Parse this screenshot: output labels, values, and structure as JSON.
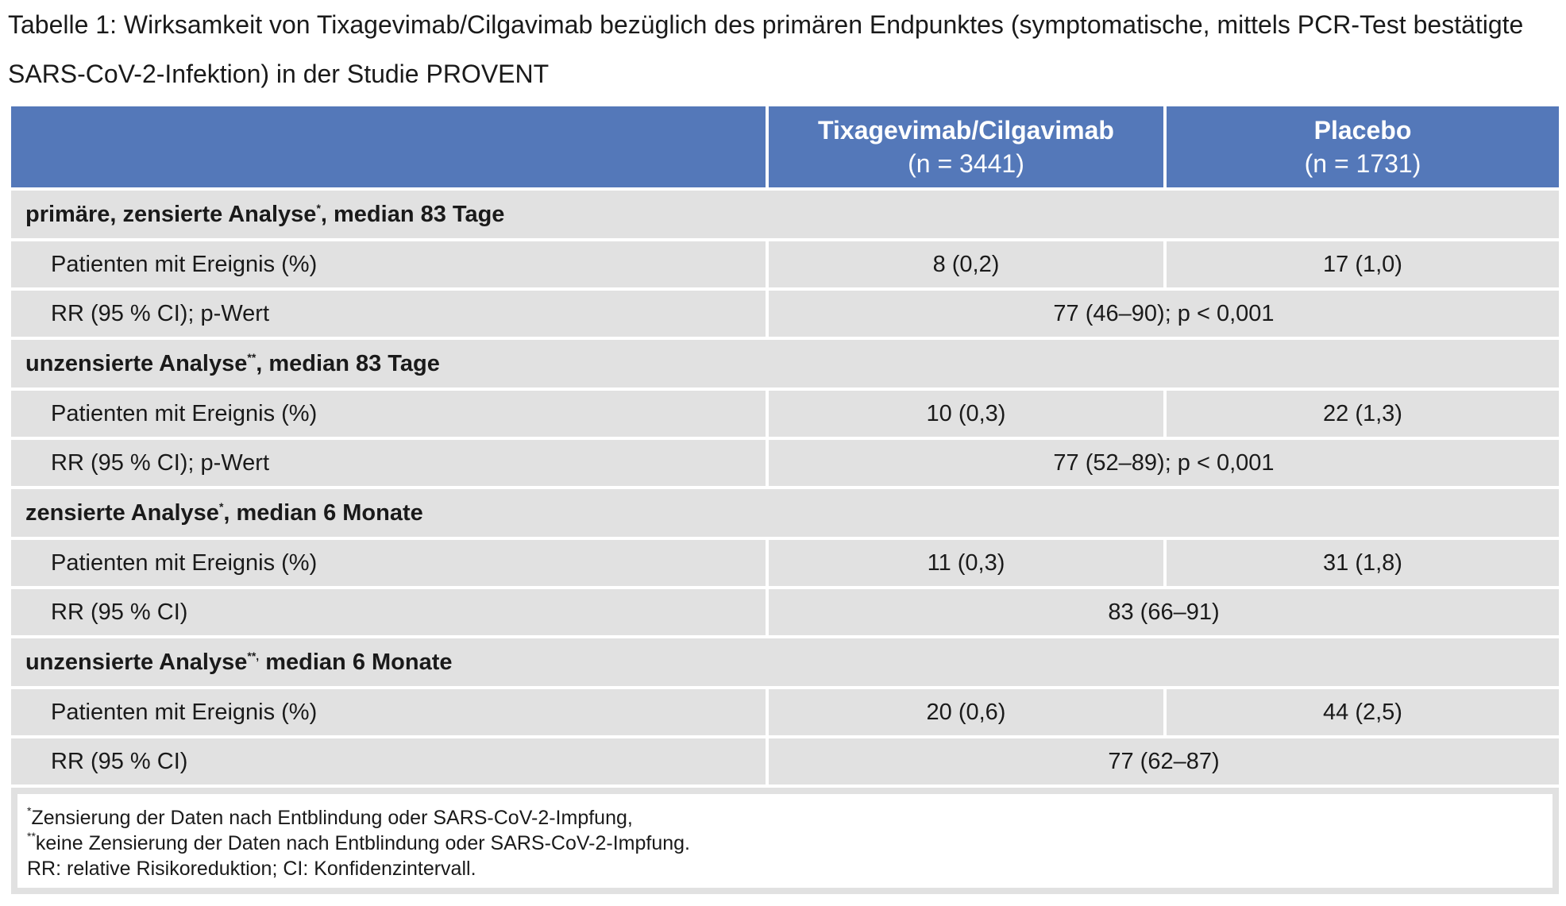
{
  "caption": {
    "line1": "Tabelle 1: Wirksamkeit von Tixagevimab/Cilgavimab bezüglich des primären Endpunktes (symptomatische, mittels PCR-Test bestätigte",
    "line2": "SARS-CoV-2-Infektion) in der Studie PROVENT"
  },
  "header": {
    "col1": "",
    "col2_title": "Tixagevimab/Cilgavimab",
    "col2_n": "(n = 3441)",
    "col3_title": "Placebo",
    "col3_n": "(n = 1731)"
  },
  "sections": [
    {
      "title_pre": "primäre, zensierte Analyse",
      "mark": "*",
      "title_post": ", median 83 Tage",
      "patients_label": "Patienten mit Ereignis (%)",
      "tix": "8 (0,2)",
      "placebo": "17 (1,0)",
      "rr_label": "RR (95 % CI); p-Wert",
      "rr_value": "77 (46–90); p < 0,001"
    },
    {
      "title_pre": "unzensierte Analyse",
      "mark": "**",
      "title_post": ", median 83 Tage",
      "patients_label": "Patienten mit Ereignis (%)",
      "tix": "10 (0,3)",
      "placebo": "22 (1,3)",
      "rr_label": "RR (95 % CI); p-Wert",
      "rr_value": "77 (52–89); p < 0,001"
    },
    {
      "title_pre": "zensierte Analyse",
      "mark": "*",
      "title_post": ", median 6 Monate",
      "patients_label": "Patienten mit Ereignis (%)",
      "tix": "11 (0,3)",
      "placebo": "31 (1,8)",
      "rr_label": "RR (95 % CI)",
      "rr_value": "83 (66–91)"
    },
    {
      "title_pre": "unzensierte Analyse",
      "mark": "**,",
      "title_post": " median 6 Monate",
      "patients_label": "Patienten mit Ereignis (%)",
      "tix": "20 (0,6)",
      "placebo": "44 (2,5)",
      "rr_label": "RR (95 % CI)",
      "rr_value": "77 (62–87)"
    }
  ],
  "footnotes": {
    "f1_mark": "*",
    "f1_text": "Zensierung der Daten nach Entblindung oder SARS-CoV-2-Impfung,",
    "f2_mark": "**",
    "f2_text": "keine Zensierung der Daten nach Entblindung oder SARS-CoV-2-Impfung.",
    "f3_text": "RR: relative Risikoreduktion; CI: Konfidenzintervall."
  },
  "colors": {
    "header_bg": "#5478b9",
    "cell_bg": "#e1e1e1"
  }
}
